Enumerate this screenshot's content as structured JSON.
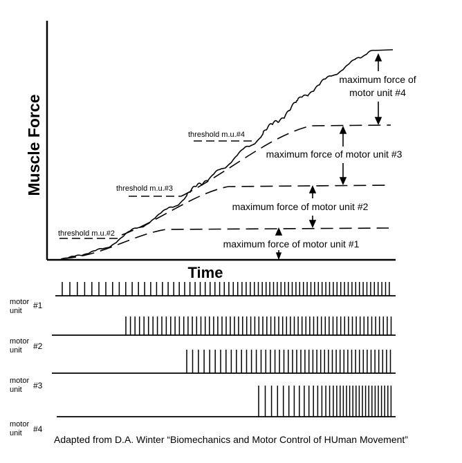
{
  "chart": {
    "ylabel": "Muscle Force",
    "xlabel": "Time",
    "annotations": {
      "max_mu4": [
        "maximum force of",
        "motor unit #4"
      ],
      "max_mu3": "maximum force of motor unit #3",
      "max_mu2": "maximum force of motor unit #2",
      "max_mu1": "maximum force of motor unit #1",
      "thr_mu4": "threshold m.u.#4",
      "thr_mu3": "threshold m.u.#3",
      "thr_mu2": "threshold m.u.#2"
    }
  },
  "spike_trains": [
    {
      "word1": "motor",
      "word2": "unit",
      "num": "#1",
      "start": 0.03,
      "density": "low-to-high"
    },
    {
      "word1": "motor",
      "word2": "unit",
      "num": "#2",
      "start": 0.22,
      "density": "medium"
    },
    {
      "word1": "motor",
      "word2": "unit",
      "num": "#3",
      "start": 0.4,
      "density": "medium"
    },
    {
      "word1": "motor",
      "word2": "unit",
      "num": "#4",
      "start": 0.6,
      "density": "medium"
    }
  ],
  "caption": "Adapted from D.A. Winter “Biomechanics and Motor Control of HUman Movement”"
}
